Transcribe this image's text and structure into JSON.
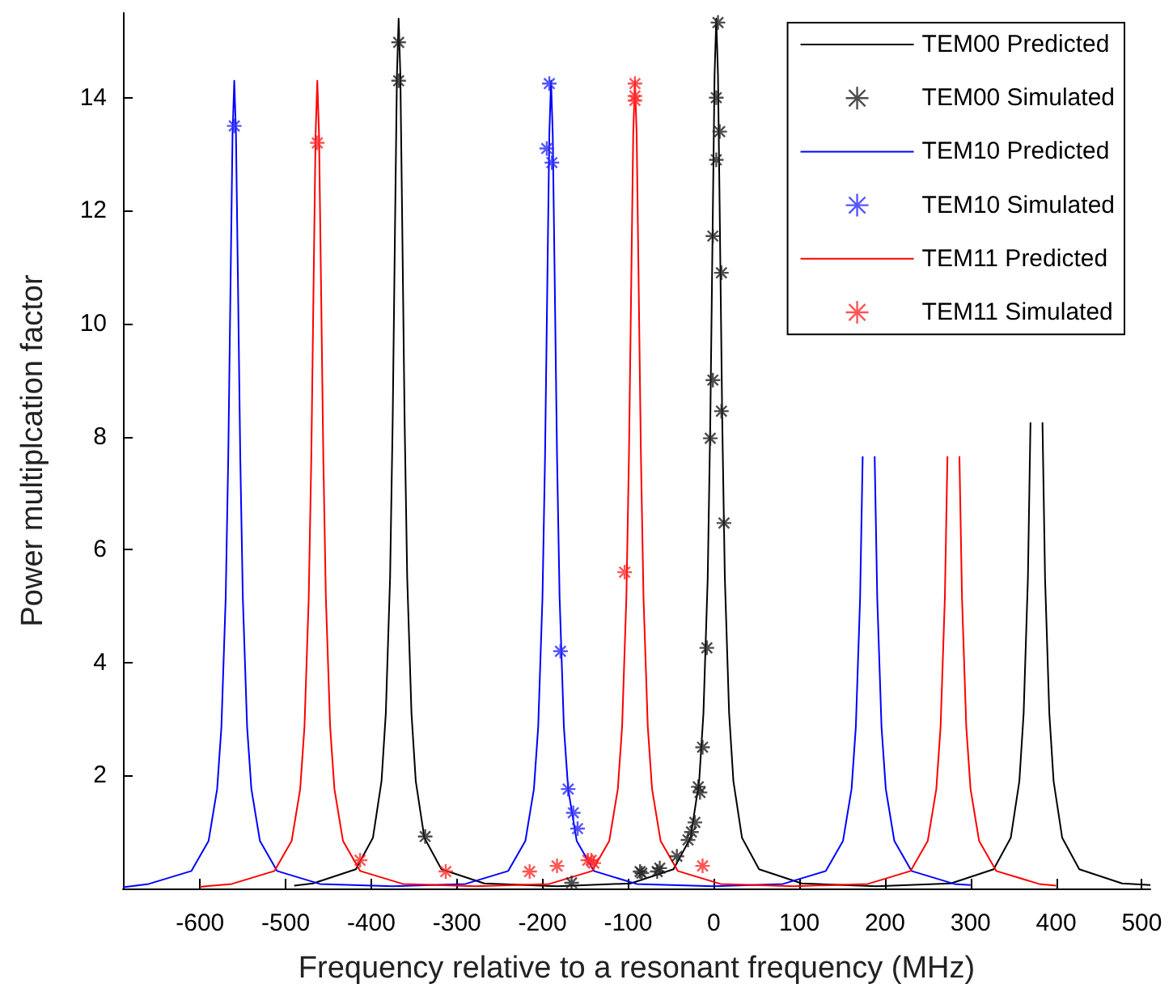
{
  "chart_data": {
    "type": "line",
    "xlabel": "Frequency relative to a resonant frequency (MHz)",
    "ylabel": "Power multiplcation factor",
    "xlim": [
      -690,
      510
    ],
    "xticks": [
      -600,
      -500,
      -400,
      -300,
      -200,
      -100,
      0,
      100,
      200,
      300,
      400,
      500
    ],
    "ylim": [
      0,
      15.5
    ],
    "yticks": [
      2,
      4,
      6,
      8,
      10,
      12,
      14
    ],
    "grid": false,
    "legend": "top right",
    "series": [
      {
        "name": "TEM00 Predicted",
        "marker": "none",
        "color": "#000000",
        "x": [
          -490,
          -468,
          -418,
          -398,
          -388,
          -383,
          -378,
          -375,
          -372,
          -370,
          -368,
          -366,
          -364,
          -361,
          -358,
          -353,
          -348,
          -338,
          -318,
          -268,
          -183,
          -97,
          -47,
          -27,
          -17,
          -12,
          -7,
          -4,
          -1,
          1,
          3,
          5,
          7,
          10,
          13,
          18,
          23,
          33,
          53,
          103,
          190,
          277,
          327,
          347,
          357,
          362,
          367,
          370,
          373,
          375,
          377,
          379,
          381,
          384,
          387,
          392,
          397,
          407,
          427,
          477,
          510
        ],
        "values": [
          0.05,
          0.09,
          0.34,
          0.9,
          1.9,
          3.1,
          5.5,
          8.25,
          12.0,
          14.4,
          15.4,
          14.4,
          12.0,
          8.25,
          5.5,
          3.1,
          1.9,
          0.9,
          0.34,
          0.09,
          0.04,
          0.09,
          0.34,
          0.9,
          1.9,
          3.1,
          5.5,
          8.25,
          12.0,
          14.4,
          15.4,
          14.4,
          12.0,
          8.25,
          5.5,
          3.1,
          1.9,
          0.9,
          0.34,
          0.09,
          0.04,
          0.09,
          0.34,
          0.9,
          1.9,
          3.1,
          5.5,
          8.25,
          null,
          null,
          null,
          null,
          null,
          8.25,
          5.5,
          3.1,
          1.9,
          0.9,
          0.34,
          0.09,
          0.06
        ]
      },
      {
        "name": "TEM00 Simulated",
        "type": "scatter",
        "marker": "cross",
        "color": "#202020",
        "x": [
          -368,
          -368,
          -337,
          -166,
          -86,
          -66,
          -84,
          -63,
          -43,
          -30,
          -26,
          -22,
          -18,
          -16,
          -13,
          -8,
          -4,
          -1,
          -1,
          3,
          3,
          5,
          7,
          9,
          9,
          12
        ],
        "values": [
          14.98,
          14.3,
          0.92,
          0.1,
          0.3,
          0.3,
          0.27,
          0.36,
          0.57,
          0.86,
          1.0,
          1.17,
          1.8,
          1.7,
          2.5,
          4.26,
          7.97,
          9.0,
          11.55,
          14.0,
          12.9,
          15.33,
          13.4,
          10.9,
          8.45,
          6.47
        ]
      },
      {
        "name": "TEM10 Predicted",
        "marker": "none",
        "color": "#0000ff",
        "x": [
          -690,
          -660,
          -610,
          -590,
          -580,
          -575,
          -570,
          -567,
          -564,
          -562,
          -560,
          -558,
          -556,
          -553,
          -550,
          -545,
          -540,
          -530,
          -510,
          -460,
          -375,
          -290,
          -240,
          -220,
          -210,
          -205,
          -200,
          -197,
          -194,
          -192,
          -190,
          -188,
          -186,
          -183,
          -180,
          -175,
          -170,
          -160,
          -140,
          -90,
          0,
          81,
          131,
          151,
          161,
          166,
          171,
          174,
          177,
          179,
          181,
          183,
          185,
          188,
          191,
          196,
          201,
          211,
          231,
          281,
          300
        ],
        "values": [
          0.02,
          0.08,
          0.31,
          0.84,
          1.76,
          2.86,
          5.15,
          7.65,
          11.1,
          13.35,
          14.3,
          13.35,
          11.1,
          7.65,
          5.15,
          2.86,
          1.76,
          0.84,
          0.31,
          0.08,
          0.04,
          0.08,
          0.31,
          0.84,
          1.76,
          2.86,
          5.15,
          7.65,
          11.1,
          13.35,
          14.3,
          13.35,
          11.1,
          7.65,
          5.15,
          2.86,
          1.76,
          0.84,
          0.31,
          0.08,
          0.04,
          0.08,
          0.31,
          0.84,
          1.76,
          2.86,
          5.15,
          7.65,
          null,
          null,
          null,
          null,
          null,
          7.65,
          5.15,
          2.86,
          1.76,
          0.84,
          0.31,
          0.08,
          0.06
        ]
      },
      {
        "name": "TEM10 Simulated",
        "type": "scatter",
        "marker": "cross",
        "color": "#2a2aff",
        "x": [
          -560,
          -192,
          -195,
          -189,
          -179,
          -170,
          -164,
          -159
        ],
        "values": [
          13.5,
          14.25,
          13.1,
          12.85,
          4.2,
          1.76,
          1.34,
          1.06
        ]
      },
      {
        "name": "TEM11 Predicted",
        "marker": "none",
        "color": "#ff0000",
        "x": [
          -600,
          -563,
          -513,
          -493,
          -483,
          -478,
          -473,
          -470,
          -467,
          -465,
          -463,
          -461,
          -459,
          -456,
          -453,
          -448,
          -443,
          -433,
          -413,
          -363,
          -278,
          -192,
          -142,
          -122,
          -112,
          -107,
          -102,
          -99,
          -96,
          -94,
          -92,
          -90,
          -88,
          -85,
          -82,
          -77,
          -72,
          -62,
          -42,
          8,
          94,
          180,
          230,
          250,
          260,
          265,
          270,
          273,
          276,
          278,
          280,
          282,
          284,
          287,
          290,
          295,
          300,
          310,
          330,
          380,
          400
        ],
        "values": [
          0.03,
          0.08,
          0.31,
          0.84,
          1.76,
          2.86,
          5.15,
          7.65,
          11.1,
          13.35,
          14.3,
          13.35,
          11.1,
          7.65,
          5.15,
          2.86,
          1.76,
          0.84,
          0.31,
          0.08,
          0.04,
          0.08,
          0.31,
          0.84,
          1.76,
          2.86,
          5.15,
          7.65,
          11.1,
          13.35,
          14.3,
          13.35,
          11.1,
          7.65,
          5.15,
          2.86,
          1.76,
          0.84,
          0.31,
          0.08,
          0.04,
          0.08,
          0.31,
          0.84,
          1.76,
          2.86,
          5.15,
          7.65,
          null,
          null,
          null,
          null,
          null,
          7.65,
          5.15,
          2.86,
          1.76,
          0.84,
          0.31,
          0.08,
          0.05
        ]
      },
      {
        "name": "TEM11 Simulated",
        "type": "scatter",
        "marker": "cross",
        "color": "#ff2a2a",
        "x": [
          -463,
          -413,
          -313,
          -215,
          -183,
          -147,
          -143,
          -140,
          -104,
          -92,
          -92,
          -92,
          -13
        ],
        "values": [
          13.2,
          0.5,
          0.3,
          0.3,
          0.4,
          0.5,
          0.5,
          0.45,
          5.6,
          14.25,
          13.95,
          14.03,
          0.4
        ]
      }
    ]
  }
}
